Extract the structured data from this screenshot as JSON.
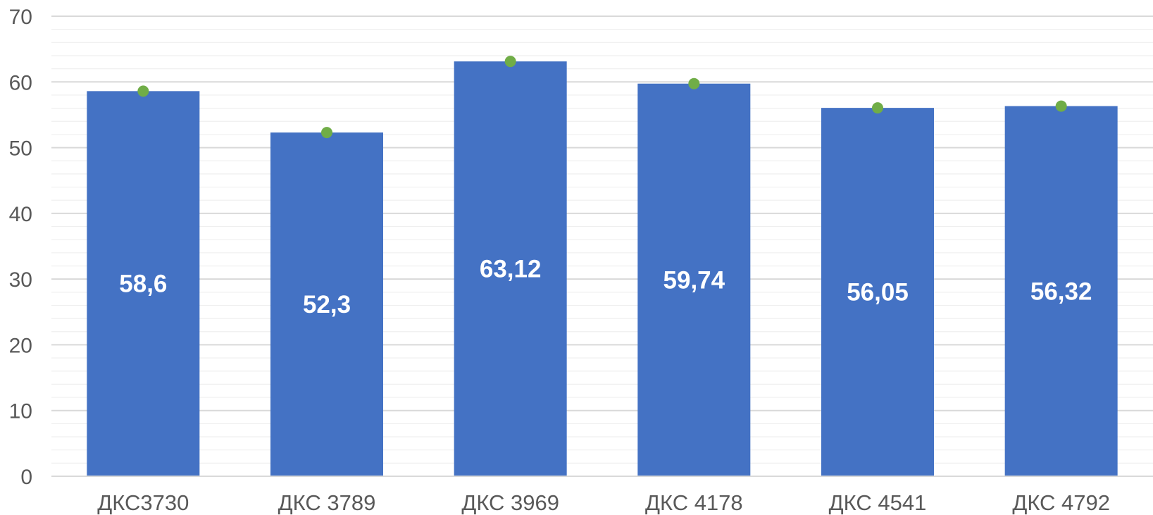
{
  "chart_data": {
    "type": "bar",
    "title": "",
    "xlabel": "",
    "ylabel": "",
    "categories": [
      "ДКС3730",
      "ДКС 3789",
      "ДКС 3969",
      "ДКС 4178",
      "ДКС 4541",
      "ДКС 4792"
    ],
    "values": [
      58.6,
      52.3,
      63.12,
      59.74,
      56.05,
      56.32
    ],
    "value_labels": [
      "58,6",
      "52,3",
      "63,12",
      "59,74",
      "56,05",
      "56,32"
    ],
    "marker_values": [
      58.6,
      52.3,
      63.12,
      59.74,
      56.05,
      56.32
    ],
    "ylim": [
      0,
      70
    ],
    "y_ticks": [
      0,
      10,
      20,
      30,
      40,
      50,
      60,
      70
    ],
    "y_minor_step": 2,
    "grid": true,
    "legend": "none",
    "colors": {
      "bar": "#4472c4",
      "marker": "#70ad47",
      "major_grid": "#d9d9d9",
      "minor_grid": "#efefef",
      "axis_text": "#595959",
      "data_label": "#ffffff"
    }
  }
}
